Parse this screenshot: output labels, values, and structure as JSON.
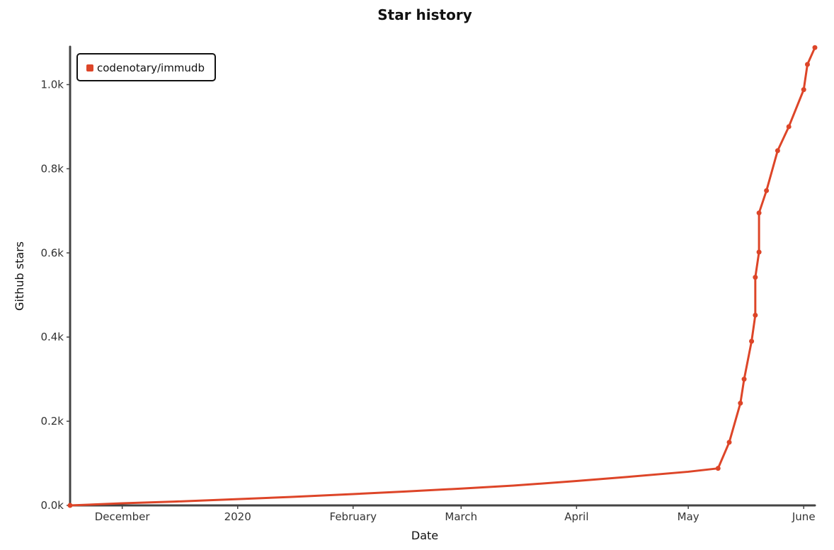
{
  "chart_data": {
    "type": "line",
    "title": "Star history",
    "xlabel": "Date",
    "ylabel": "Github stars",
    "x_axis_type": "date",
    "x_tick_labels": [
      "December",
      "2020",
      "February",
      "March",
      "April",
      "May",
      "June"
    ],
    "x_tick_dates": [
      "2019-12-01",
      "2020-01-01",
      "2020-02-01",
      "2020-03-01",
      "2020-04-01",
      "2020-05-01",
      "2020-06-01"
    ],
    "xlim": [
      "2019-11-17",
      "2020-06-04"
    ],
    "y_tick_labels": [
      "0.0k",
      "0.2k",
      "0.4k",
      "0.6k",
      "0.8k",
      "1.0k"
    ],
    "y_ticks": [
      0,
      200,
      400,
      600,
      800,
      1000
    ],
    "ylim": [
      0,
      1090
    ],
    "grid": false,
    "legend": {
      "position": "top-left"
    },
    "series": [
      {
        "name": "codenotary/immudb",
        "color": "#dd4528",
        "points": [
          [
            "2019-11-17",
            0
          ],
          [
            "2019-12-01",
            5
          ],
          [
            "2019-12-15",
            9
          ],
          [
            "2020-01-01",
            15
          ],
          [
            "2020-01-15",
            20
          ],
          [
            "2020-02-01",
            27
          ],
          [
            "2020-02-15",
            33
          ],
          [
            "2020-03-01",
            40
          ],
          [
            "2020-03-15",
            47
          ],
          [
            "2020-04-01",
            58
          ],
          [
            "2020-04-15",
            68
          ],
          [
            "2020-05-01",
            80
          ],
          [
            "2020-05-09",
            88
          ],
          [
            "2020-05-12",
            150
          ],
          [
            "2020-05-15",
            243
          ],
          [
            "2020-05-16",
            300
          ],
          [
            "2020-05-18",
            390
          ],
          [
            "2020-05-19",
            452
          ],
          [
            "2020-05-19",
            542
          ],
          [
            "2020-05-20",
            602
          ],
          [
            "2020-05-20",
            695
          ],
          [
            "2020-05-22",
            748
          ],
          [
            "2020-05-25",
            843
          ],
          [
            "2020-05-28",
            900
          ],
          [
            "2020-06-01",
            988
          ],
          [
            "2020-06-02",
            1048
          ],
          [
            "2020-06-04",
            1088
          ]
        ]
      }
    ]
  }
}
